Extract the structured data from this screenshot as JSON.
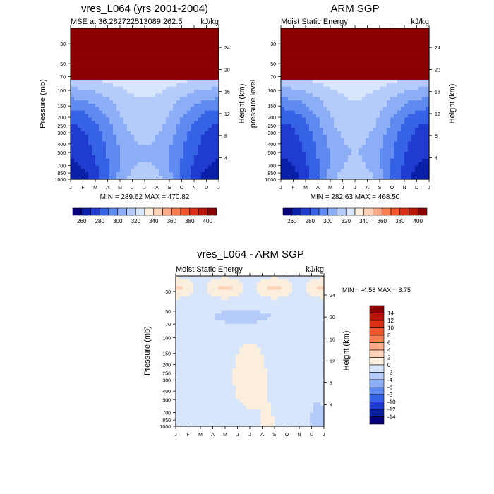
{
  "chart_data": [
    {
      "type": "heatmap",
      "title": "vres_L064 (yrs 2001-2004)",
      "left_string": "MSE at 36.282722513089,262.5",
      "right_string": "kJ/kg",
      "ylabel": "Pressure (mb)",
      "right_axis_label": "Height (km)",
      "x_ticks": [
        "J",
        "F",
        "M",
        "A",
        "M",
        "J",
        "J",
        "A",
        "S",
        "O",
        "N",
        "D",
        "J"
      ],
      "y_ticks": [
        30,
        50,
        70,
        100,
        150,
        200,
        250,
        300,
        400,
        500,
        700,
        850,
        1000
      ],
      "height_ticks": [
        24,
        20,
        16,
        12,
        8,
        4
      ],
      "min_max_text": "MIN = 289.62 MAX = 470.82",
      "colorbar_labels": [
        "260",
        "280",
        "300",
        "320",
        "340",
        "360",
        "380",
        "400"
      ],
      "colorbar_colors": [
        "#08007a",
        "#0a1fa8",
        "#1f3bd0",
        "#3663e6",
        "#5f8af0",
        "#8caef6",
        "#b5ccfa",
        "#d8e6fc",
        "#fbeedd",
        "#fdd2b6",
        "#fcaa87",
        "#fa7d52",
        "#f2542b",
        "#dc3016",
        "#b9160a",
        "#8b0000"
      ],
      "levels": [
        250,
        260,
        270,
        280,
        290,
        300,
        310,
        320,
        330,
        340,
        350,
        360,
        370,
        380,
        390,
        400,
        410
      ],
      "ylim": [
        1000,
        20
      ],
      "seasonal_amplitude": 1.0
    },
    {
      "type": "heatmap",
      "title": "ARM SGP",
      "left_string": "Moist Static Energy",
      "right_string": "kJ/kg",
      "ylabel": "pressure level",
      "right_axis_label": "Height (km)",
      "x_ticks": [
        "J",
        "F",
        "M",
        "A",
        "M",
        "J",
        "J",
        "A",
        "S",
        "O",
        "N",
        "D",
        "J"
      ],
      "y_ticks": [
        30,
        50,
        70,
        100,
        150,
        200,
        250,
        300,
        400,
        500,
        700,
        850,
        1000
      ],
      "height_ticks": [
        24,
        20,
        16,
        12,
        8,
        4
      ],
      "min_max_text": "MIN = 282.63 MAX = 468.50",
      "colorbar_labels": [
        "260",
        "280",
        "300",
        "320",
        "340",
        "360",
        "380",
        "400"
      ],
      "colorbar_colors": [
        "#08007a",
        "#0a1fa8",
        "#1f3bd0",
        "#3663e6",
        "#5f8af0",
        "#8caef6",
        "#b5ccfa",
        "#d8e6fc",
        "#fbeedd",
        "#fdd2b6",
        "#fcaa87",
        "#fa7d52",
        "#f2542b",
        "#dc3016",
        "#b9160a",
        "#8b0000"
      ],
      "levels": [
        250,
        260,
        270,
        280,
        290,
        300,
        310,
        320,
        330,
        340,
        350,
        360,
        370,
        380,
        390,
        400,
        410
      ],
      "ylim": [
        1000,
        20
      ],
      "seasonal_amplitude": 1.05
    },
    {
      "type": "heatmap",
      "title": "vres_L064 - ARM SGP",
      "left_string": "Moist Static Energy",
      "right_string": "kJ/kg",
      "ylabel": "Pressure (mb)",
      "right_axis_label": "Height (km)",
      "x_ticks": [
        "J",
        "F",
        "M",
        "A",
        "M",
        "J",
        "J",
        "A",
        "S",
        "O",
        "N",
        "D",
        "J"
      ],
      "y_ticks": [
        30,
        50,
        70,
        100,
        150,
        200,
        250,
        300,
        400,
        500,
        700,
        850,
        1000
      ],
      "height_ticks": [
        24,
        20,
        16,
        12,
        8,
        4
      ],
      "min_max_text": "MIN =  -4.58 MAX =   8.75",
      "colorbar_labels": [
        "14",
        "12",
        "10",
        "8",
        "6",
        "4",
        "2",
        "0",
        "-2",
        "-4",
        "-6",
        "-8",
        "-10",
        "-12",
        "-14"
      ],
      "colorbar_colors": [
        "#8b0000",
        "#b9160a",
        "#dc3016",
        "#f2542b",
        "#fa7d52",
        "#fcaa87",
        "#fdd2b6",
        "#fbeedd",
        "#d8e6fc",
        "#b5ccfa",
        "#8caef6",
        "#5f8af0",
        "#3663e6",
        "#1f3bd0",
        "#0a1fa8",
        "#08007a"
      ],
      "levels": [
        -16,
        -14,
        -12,
        -10,
        -8,
        -6,
        -4,
        -2,
        0,
        2,
        4,
        6,
        8,
        10,
        12,
        14,
        16
      ],
      "ylim": [
        1000,
        20
      ]
    }
  ]
}
